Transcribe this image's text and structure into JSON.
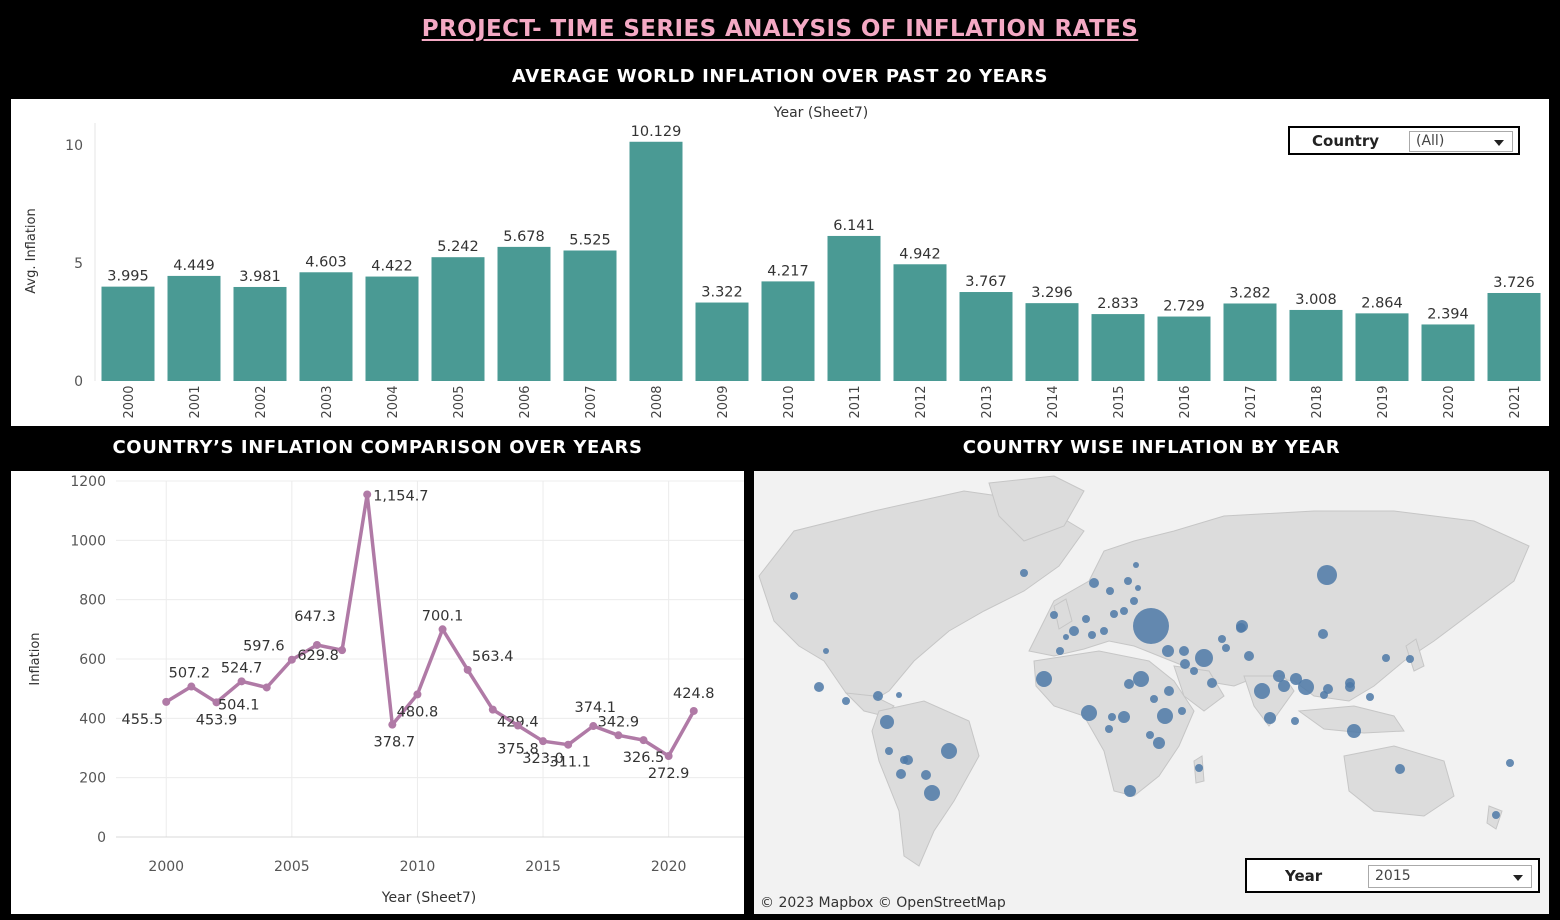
{
  "title": "PROJECT- TIME SERIES ANALYSIS OF INFLATION RATES",
  "sections": {
    "bar": "AVERAGE WORLD INFLATION OVER PAST 20 YEARS",
    "line": "COUNTRY’S INFLATION COMPARISON OVER YEARS",
    "map": "COUNTRY WISE INFLATION BY YEAR"
  },
  "country_filter": {
    "label": "Country",
    "value": "(All)"
  },
  "year_filter": {
    "label": "Year",
    "value": "2015"
  },
  "map_attribution": "© 2023 Mapbox  © OpenStreetMap",
  "colors": {
    "bar": "#4a9a94",
    "line": "#b07aa6",
    "map_land": "#dcdcdc",
    "map_sea": "#f2f2f2",
    "map_dot": "#4e79a7",
    "title": "#f4a9c4"
  },
  "chart_data": [
    {
      "type": "bar",
      "title": "Year (Sheet7)",
      "ylabel": "Avg. Inflation",
      "ylim": [
        0,
        10.5
      ],
      "yticks": [
        0,
        5,
        10
      ],
      "categories": [
        "2000",
        "2001",
        "2002",
        "2003",
        "2004",
        "2005",
        "2006",
        "2007",
        "2008",
        "2009",
        "2010",
        "2011",
        "2012",
        "2013",
        "2014",
        "2015",
        "2016",
        "2017",
        "2018",
        "2019",
        "2020",
        "2021"
      ],
      "values": [
        3.995,
        4.449,
        3.981,
        4.603,
        4.422,
        5.242,
        5.678,
        5.525,
        10.129,
        3.322,
        4.217,
        6.141,
        4.942,
        3.767,
        3.296,
        2.833,
        2.729,
        3.282,
        3.008,
        2.864,
        2.394,
        3.726
      ],
      "labels": [
        "3.995",
        "4.449",
        "3.981",
        "4.603",
        "4.422",
        "5.242",
        "5.678",
        "5.525",
        "10.129",
        "3.322",
        "4.217",
        "6.141",
        "4.942",
        "3.767",
        "3.296",
        "2.833",
        "2.729",
        "3.282",
        "3.008",
        "2.864",
        "2.394",
        "3.726"
      ]
    },
    {
      "type": "line",
      "xlabel": "Year (Sheet7)",
      "ylabel": "Inflation",
      "xlim": [
        1998,
        2023
      ],
      "ylim": [
        0,
        1200
      ],
      "xticks": [
        2000,
        2005,
        2010,
        2015,
        2020
      ],
      "yticks": [
        0,
        200,
        400,
        600,
        800,
        1000,
        1200
      ],
      "x": [
        2000,
        2001,
        2002,
        2003,
        2004,
        2005,
        2006,
        2007,
        2008,
        2009,
        2010,
        2011,
        2012,
        2013,
        2014,
        2015,
        2016,
        2017,
        2018,
        2019,
        2020,
        2021
      ],
      "values": [
        455.5,
        507.2,
        453.9,
        524.7,
        504.1,
        597.6,
        647.3,
        629.8,
        1154.7,
        378.7,
        480.8,
        700.1,
        563.4,
        429.4,
        375.8,
        323.0,
        311.1,
        374.1,
        342.9,
        326.5,
        272.9,
        424.8
      ],
      "labels": [
        "455.5",
        "507.2",
        "453.9",
        "524.7",
        "504.1",
        "597.6",
        "647.3",
        "629.8",
        "1,154.7",
        "378.7",
        "480.8",
        "700.1",
        "563.4",
        "429.4",
        "375.8",
        "323.0",
        "311.1",
        "374.1",
        "342.9",
        "326.5",
        "272.9",
        "424.8"
      ]
    }
  ]
}
